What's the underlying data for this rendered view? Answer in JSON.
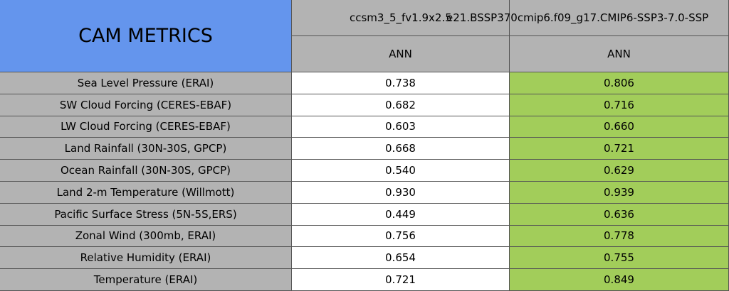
{
  "header": {
    "title": "CAM METRICS",
    "columns": [
      {
        "case": "ccsm3_5_fv1.9x2.5",
        "season": "ANN"
      },
      {
        "case": "e21.BSSP370cmip6.f09_g17.CMIP6-SSP3-7.0-SSP",
        "season": "ANN"
      }
    ]
  },
  "rows": [
    {
      "label": "Sea Level Pressure (ERAI)",
      "values": [
        "0.738",
        "0.806"
      ]
    },
    {
      "label": "SW Cloud Forcing (CERES-EBAF)",
      "values": [
        "0.682",
        "0.716"
      ]
    },
    {
      "label": "LW Cloud Forcing (CERES-EBAF)",
      "values": [
        "0.603",
        "0.660"
      ]
    },
    {
      "label": "Land Rainfall (30N-30S, GPCP)",
      "values": [
        "0.668",
        "0.721"
      ]
    },
    {
      "label": "Ocean Rainfall (30N-30S, GPCP)",
      "values": [
        "0.540",
        "0.629"
      ]
    },
    {
      "label": "Land 2-m Temperature (Willmott)",
      "values": [
        "0.930",
        "0.939"
      ]
    },
    {
      "label": "Pacific Surface Stress (5N-5S,ERS)",
      "values": [
        "0.449",
        "0.636"
      ]
    },
    {
      "label": "Zonal Wind (300mb, ERAI)",
      "values": [
        "0.756",
        "0.778"
      ]
    },
    {
      "label": "Relative Humidity (ERAI)",
      "values": [
        "0.654",
        "0.755"
      ]
    },
    {
      "label": "Temperature (ERAI)",
      "values": [
        "0.721",
        "0.849"
      ]
    }
  ]
}
